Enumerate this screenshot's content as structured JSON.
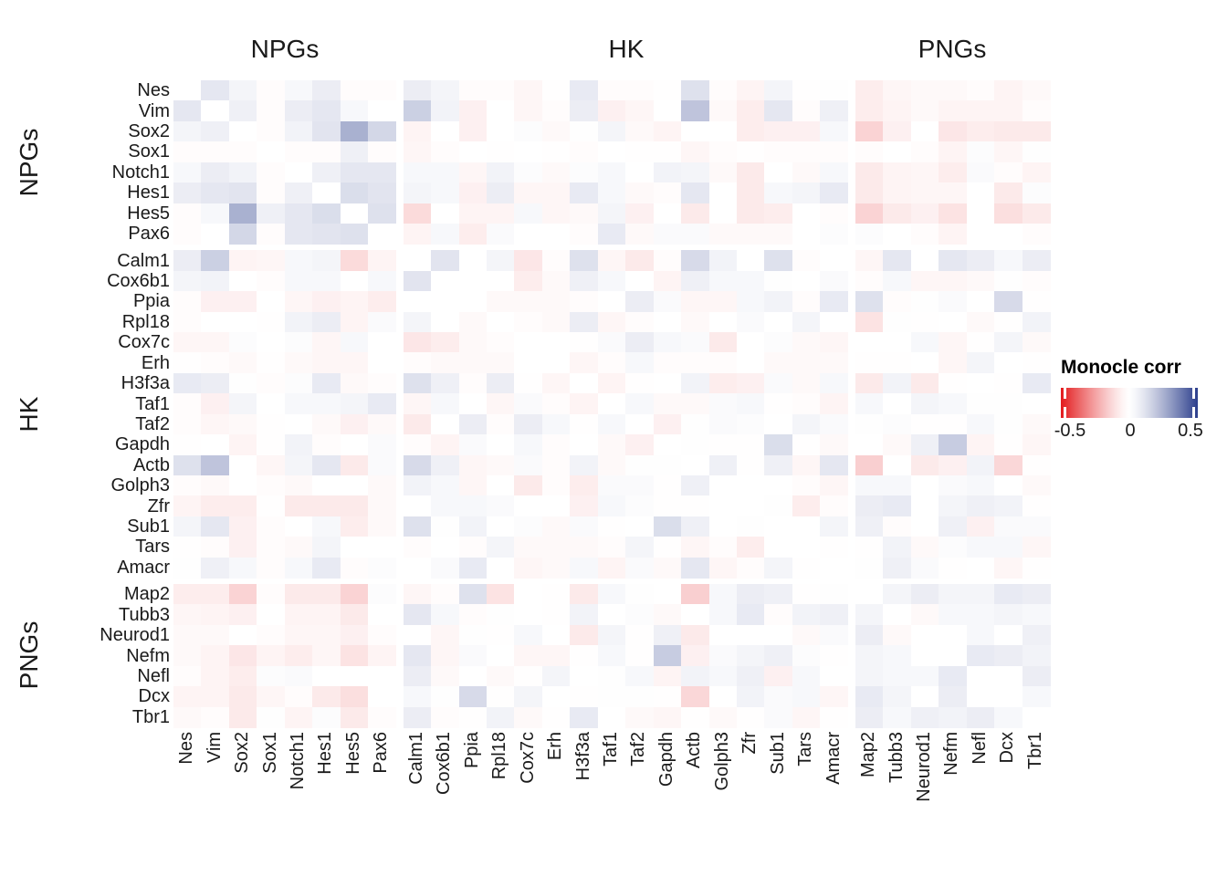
{
  "chart_data": {
    "type": "heatmap",
    "legend_title": "Monocle corr",
    "colorbar": {
      "min": -0.5,
      "mid": 0,
      "max": 0.5,
      "ticks": [
        "-0.5",
        "0",
        "0.5"
      ],
      "neg_color": "#E31A1C",
      "mid_color": "#FFFFFF",
      "pos_color": "#2C3E8C"
    },
    "groups": [
      {
        "label": "NPGs",
        "genes": [
          "Nes",
          "Vim",
          "Sox2",
          "Sox1",
          "Notch1",
          "Hes1",
          "Hes5",
          "Pax6"
        ]
      },
      {
        "label": "HK",
        "genes": [
          "Calm1",
          "Cox6b1",
          "Ppia",
          "Rpl18",
          "Cox7c",
          "Erh",
          "H3f3a",
          "Taf1",
          "Taf2",
          "Gapdh",
          "Actb",
          "Golph3",
          "Zfr",
          "Sub1",
          "Tars",
          "Amacr"
        ]
      },
      {
        "label": "PNGs",
        "genes": [
          "Map2",
          "Tubb3",
          "Neurod1",
          "Nefm",
          "Nefl",
          "Dcx",
          "Tbr1"
        ]
      }
    ],
    "x": [
      "Nes",
      "Vim",
      "Sox2",
      "Sox1",
      "Notch1",
      "Hes1",
      "Hes5",
      "Pax6",
      "Calm1",
      "Cox6b1",
      "Ppia",
      "Rpl18",
      "Cox7c",
      "Erh",
      "H3f3a",
      "Taf1",
      "Taf2",
      "Gapdh",
      "Actb",
      "Golph3",
      "Zfr",
      "Sub1",
      "Tars",
      "Amacr",
      "Map2",
      "Tubb3",
      "Neurod1",
      "Nefm",
      "Nefl",
      "Dcx",
      "Tbr1"
    ],
    "y": [
      "Nes",
      "Vim",
      "Sox2",
      "Sox1",
      "Notch1",
      "Hes1",
      "Hes5",
      "Pax6",
      "Calm1",
      "Cox6b1",
      "Ppia",
      "Rpl18",
      "Cox7c",
      "Erh",
      "H3f3a",
      "Taf1",
      "Taf2",
      "Gapdh",
      "Actb",
      "Golph3",
      "Zfr",
      "Sub1",
      "Tars",
      "Amacr",
      "Map2",
      "Tubb3",
      "Neurod1",
      "Nefm",
      "Nefl",
      "Dcx",
      "Tbr1"
    ],
    "matrix": [
      [
        0,
        0.1,
        0.05,
        -0.02,
        0.04,
        0.08,
        -0.02,
        -0.02,
        0.08,
        0.05,
        -0.02,
        -0.02,
        -0.04,
        -0.01,
        0.09,
        -0.02,
        -0.02,
        -0.01,
        0.12,
        -0.02,
        -0.05,
        0.05,
        -0.01,
        0.01,
        -0.07,
        -0.04,
        -0.03,
        -0.03,
        -0.02,
        -0.05,
        -0.03
      ],
      [
        0.1,
        0,
        0.07,
        -0.02,
        0.08,
        0.1,
        0.04,
        0,
        0.17,
        0.06,
        -0.06,
        0,
        -0.04,
        -0.02,
        0.08,
        -0.06,
        -0.04,
        0,
        0.2,
        -0.03,
        -0.07,
        0.1,
        -0.02,
        0.07,
        -0.07,
        -0.05,
        -0.03,
        -0.05,
        -0.05,
        -0.05,
        -0.02
      ],
      [
        0.05,
        0.07,
        0,
        -0.02,
        0.06,
        0.11,
        0.25,
        0.15,
        -0.05,
        0,
        -0.06,
        0,
        0.02,
        -0.03,
        0.01,
        0.05,
        -0.03,
        -0.05,
        0,
        0,
        -0.07,
        -0.06,
        -0.06,
        0.04,
        -0.14,
        -0.06,
        0,
        -0.09,
        -0.07,
        -0.08,
        -0.08
      ],
      [
        -0.02,
        -0.02,
        -0.02,
        0,
        -0.02,
        -0.02,
        0.07,
        -0.02,
        -0.04,
        -0.02,
        0,
        -0.01,
        0,
        -0.01,
        -0.02,
        0,
        -0.01,
        -0.01,
        -0.04,
        -0.02,
        -0.01,
        -0.02,
        -0.02,
        -0.02,
        -0.02,
        0,
        -0.02,
        -0.05,
        0.02,
        -0.04,
        0.01
      ],
      [
        0.04,
        0.08,
        0.06,
        -0.02,
        0,
        0.07,
        0.1,
        0.1,
        0.04,
        0.04,
        -0.04,
        0.06,
        0.02,
        -0.03,
        0.02,
        0.04,
        0,
        0.06,
        0.05,
        -0.03,
        -0.08,
        0,
        -0.03,
        0.04,
        -0.08,
        -0.05,
        -0.04,
        -0.07,
        0.03,
        -0.02,
        -0.05
      ],
      [
        0.08,
        0.1,
        0.11,
        -0.02,
        0.07,
        0,
        0.13,
        0.11,
        0.05,
        0.04,
        -0.06,
        0.08,
        -0.04,
        -0.04,
        0.09,
        0.04,
        -0.03,
        -0.02,
        0.1,
        0,
        -0.08,
        0.04,
        0.05,
        0.09,
        -0.08,
        -0.05,
        -0.04,
        -0.04,
        0,
        -0.08,
        0.02
      ],
      [
        -0.02,
        0.04,
        0.25,
        0.07,
        0.1,
        0.13,
        0,
        0.12,
        -0.12,
        0,
        -0.05,
        -0.05,
        0.04,
        -0.04,
        -0.03,
        0.05,
        -0.06,
        0,
        -0.08,
        0,
        -0.08,
        -0.07,
        0,
        -0.02,
        -0.14,
        -0.08,
        -0.06,
        -0.1,
        0,
        -0.11,
        -0.08
      ],
      [
        -0.02,
        0,
        0.15,
        -0.02,
        0.1,
        0.11,
        0.12,
        0,
        -0.05,
        0.04,
        -0.07,
        0.03,
        0,
        0,
        -0.02,
        0.09,
        -0.03,
        0.03,
        0.03,
        -0.03,
        -0.03,
        -0.03,
        0,
        0.02,
        0.02,
        0,
        -0.02,
        -0.05,
        0,
        0,
        -0.02
      ],
      [
        0.08,
        0.17,
        -0.05,
        -0.04,
        0.04,
        0.05,
        -0.12,
        -0.05,
        0,
        0.11,
        0,
        0.05,
        -0.09,
        -0.02,
        0.12,
        -0.04,
        -0.08,
        -0.02,
        0.14,
        0.06,
        0,
        0.12,
        -0.02,
        0,
        -0.04,
        0.1,
        0,
        0.1,
        0.08,
        0.04,
        0.08
      ],
      [
        0.05,
        0.06,
        0,
        -0.02,
        0.04,
        0.04,
        0,
        0.04,
        0.11,
        0,
        0,
        0,
        -0.07,
        -0.03,
        0.07,
        0.04,
        0,
        -0.05,
        0.07,
        0.04,
        0.04,
        0.01,
        0,
        0.03,
        -0.02,
        0.04,
        -0.04,
        -0.04,
        -0.03,
        0.01,
        -0.02
      ],
      [
        -0.02,
        -0.06,
        -0.06,
        0,
        -0.04,
        -0.06,
        -0.05,
        -0.07,
        0,
        0,
        0,
        -0.03,
        -0.03,
        -0.03,
        -0.02,
        0,
        0.08,
        0.03,
        -0.04,
        -0.04,
        0.04,
        0.06,
        -0.02,
        0.09,
        0.12,
        -0.02,
        0.01,
        0.03,
        0,
        0.14,
        -0.01
      ],
      [
        -0.02,
        0,
        0,
        -0.01,
        0.06,
        0.08,
        -0.05,
        0.03,
        0.05,
        0,
        -0.03,
        0,
        -0.02,
        -0.03,
        0.08,
        -0.04,
        -0.02,
        0,
        -0.03,
        0,
        0.03,
        0,
        0.05,
        0,
        -0.1,
        0.01,
        -0.01,
        0,
        -0.03,
        -0.01,
        0.06
      ],
      [
        -0.04,
        -0.04,
        0.02,
        0,
        0.02,
        -0.04,
        0.04,
        0,
        -0.09,
        -0.07,
        -0.03,
        -0.02,
        0,
        0,
        -0.01,
        0.03,
        0.08,
        0.04,
        0.03,
        -0.08,
        0,
        0.02,
        -0.03,
        -0.04,
        0,
        0,
        0.04,
        -0.04,
        -0.01,
        0.05,
        -0.03
      ],
      [
        -0.01,
        -0.02,
        -0.03,
        -0.01,
        -0.03,
        -0.04,
        -0.04,
        0,
        -0.02,
        -0.03,
        -0.03,
        -0.03,
        0,
        0,
        -0.04,
        -0.02,
        0.04,
        -0.02,
        -0.02,
        -0.02,
        0,
        -0.03,
        -0.03,
        -0.03,
        -0.01,
        -0.01,
        0,
        -0.04,
        0.05,
        0,
        -0.01
      ],
      [
        0.09,
        0.08,
        0.01,
        -0.02,
        0.02,
        0.09,
        -0.03,
        -0.02,
        0.12,
        0.07,
        -0.02,
        0.08,
        -0.01,
        -0.04,
        0,
        -0.05,
        -0.01,
        0,
        0.06,
        -0.07,
        -0.06,
        0.03,
        -0.03,
        0.04,
        -0.08,
        0.06,
        -0.08,
        -0.01,
        0,
        -0.01,
        0.09
      ],
      [
        -0.02,
        -0.06,
        0.05,
        0,
        0.04,
        0.04,
        0.05,
        0.09,
        -0.04,
        0.04,
        0,
        -0.04,
        0.03,
        -0.02,
        -0.05,
        0,
        0.04,
        -0.03,
        -0.03,
        0.03,
        0.04,
        -0.01,
        -0.02,
        -0.05,
        0.04,
        0,
        0.05,
        0.04,
        0.01,
        0.01,
        0
      ],
      [
        -0.02,
        -0.04,
        -0.03,
        -0.01,
        0,
        -0.03,
        -0.06,
        -0.03,
        -0.08,
        0,
        0.08,
        -0.02,
        0.08,
        0.04,
        -0.01,
        0.04,
        0,
        -0.06,
        0.01,
        0.03,
        0.02,
        0,
        0.05,
        0.03,
        0.01,
        0.02,
        -0.01,
        -0.01,
        0.04,
        0.01,
        -0.03
      ],
      [
        -0.01,
        0,
        -0.05,
        -0.01,
        0.06,
        -0.02,
        0,
        0.03,
        -0.02,
        -0.05,
        0.03,
        0,
        0.04,
        -0.02,
        0,
        -0.03,
        -0.06,
        0,
        0.01,
        -0.01,
        -0.01,
        0.13,
        -0.01,
        -0.03,
        0,
        -0.03,
        0.07,
        0.18,
        -0.05,
        -0.01,
        -0.04
      ],
      [
        0.12,
        0.2,
        0,
        -0.04,
        0.05,
        0.1,
        -0.08,
        0.03,
        0.14,
        0.07,
        -0.04,
        -0.03,
        0.03,
        -0.02,
        0.06,
        -0.03,
        0.01,
        0.01,
        0,
        0.07,
        -0.01,
        0.07,
        -0.04,
        0.1,
        -0.15,
        0,
        -0.08,
        -0.06,
        0.06,
        -0.13,
        -0.01
      ],
      [
        -0.02,
        -0.03,
        0,
        -0.02,
        -0.03,
        0,
        0,
        -0.03,
        0.06,
        0.04,
        -0.04,
        0,
        -0.08,
        -0.02,
        -0.07,
        0.03,
        0.03,
        -0.01,
        0.07,
        0,
        0,
        0,
        -0.02,
        -0.04,
        0.04,
        0.04,
        0,
        0.03,
        0.04,
        0,
        -0.03
      ],
      [
        -0.05,
        -0.07,
        -0.07,
        -0.01,
        -0.08,
        -0.08,
        -0.08,
        -0.03,
        0,
        0.04,
        0.04,
        0.03,
        0,
        0,
        -0.06,
        0.04,
        0.02,
        -0.01,
        -0.01,
        0,
        0,
        0.01,
        -0.07,
        -0.02,
        0.08,
        0.09,
        0,
        0.05,
        0.07,
        0.06,
        -0.01
      ],
      [
        0.05,
        0.1,
        -0.06,
        -0.02,
        0,
        0.04,
        -0.07,
        -0.03,
        0.12,
        0.01,
        0.06,
        0,
        0.02,
        -0.03,
        0.03,
        -0.01,
        0,
        0.13,
        0.07,
        0,
        0.01,
        0,
        0,
        0.05,
        0.07,
        -0.02,
        0,
        0.07,
        -0.06,
        0.03,
        0.03
      ],
      [
        -0.01,
        -0.02,
        -0.06,
        -0.02,
        -0.03,
        0.05,
        0,
        0,
        -0.02,
        0,
        -0.02,
        0.05,
        -0.03,
        -0.03,
        -0.03,
        -0.02,
        0.05,
        -0.01,
        -0.04,
        -0.02,
        -0.07,
        0,
        0,
        -0.01,
        -0.01,
        0.06,
        -0.03,
        0.02,
        0.04,
        0.04,
        -0.04
      ],
      [
        0.01,
        0.07,
        0.04,
        -0.02,
        0.04,
        0.09,
        -0.02,
        0.02,
        0,
        0.03,
        0.09,
        0,
        -0.04,
        -0.03,
        0.04,
        -0.05,
        0.03,
        -0.03,
        0.1,
        -0.04,
        -0.02,
        0.05,
        -0.01,
        0,
        0.01,
        0.07,
        0.03,
        -0.01,
        0,
        -0.04,
        -0.01
      ],
      [
        -0.07,
        -0.07,
        -0.14,
        -0.02,
        -0.08,
        -0.08,
        -0.14,
        0.02,
        -0.04,
        -0.02,
        0.12,
        -0.1,
        0,
        -0.01,
        -0.08,
        0.04,
        0.01,
        0,
        -0.15,
        0.04,
        0.08,
        0.07,
        -0.01,
        0.01,
        0,
        0.05,
        0.08,
        0.05,
        0.05,
        0.09,
        0.08
      ],
      [
        -0.04,
        -0.05,
        -0.06,
        0,
        -0.05,
        -0.05,
        -0.08,
        0,
        0.1,
        0.04,
        -0.02,
        0.01,
        0,
        -0.01,
        0.06,
        0,
        0.02,
        -0.03,
        0,
        0.04,
        0.09,
        -0.02,
        0.06,
        0.07,
        0.05,
        0,
        -0.03,
        0.04,
        0.04,
        0.05,
        0.04
      ],
      [
        -0.03,
        -0.03,
        0,
        -0.02,
        -0.04,
        -0.04,
        -0.06,
        -0.02,
        0,
        -0.04,
        0.01,
        -0.01,
        0.04,
        0,
        -0.08,
        0.05,
        -0.01,
        0.07,
        -0.08,
        0,
        0,
        0,
        -0.03,
        0.03,
        0.08,
        -0.03,
        0,
        0,
        0.04,
        0,
        0.07
      ],
      [
        -0.03,
        -0.05,
        -0.09,
        -0.05,
        -0.07,
        -0.04,
        -0.1,
        -0.05,
        0.1,
        -0.04,
        0.03,
        0,
        -0.04,
        -0.04,
        -0.01,
        0.04,
        -0.01,
        0.18,
        -0.06,
        0.03,
        0.05,
        0.07,
        0.02,
        -0.01,
        0.05,
        0.04,
        0,
        0,
        0.09,
        0.08,
        0.06
      ],
      [
        -0.02,
        -0.05,
        -0.07,
        0.02,
        0.03,
        0,
        0,
        0,
        0.08,
        -0.03,
        0,
        -0.03,
        -0.01,
        0.05,
        0,
        0.01,
        0.04,
        -0.05,
        0.06,
        0.04,
        0.07,
        -0.06,
        0.04,
        0,
        0.05,
        0.04,
        0.04,
        0.09,
        0,
        0,
        0.08
      ],
      [
        -0.05,
        -0.05,
        -0.08,
        -0.04,
        -0.02,
        -0.08,
        -0.11,
        0,
        0.04,
        0.01,
        0.14,
        -0.01,
        0.05,
        0,
        -0.01,
        0.01,
        0.01,
        -0.01,
        -0.13,
        0,
        0.06,
        0.03,
        0.04,
        -0.04,
        0.09,
        0.05,
        0,
        0.08,
        0,
        0,
        0.04
      ],
      [
        -0.03,
        -0.02,
        -0.08,
        0.01,
        -0.05,
        0.02,
        -0.08,
        -0.02,
        0.08,
        -0.02,
        -0.01,
        0.06,
        -0.03,
        -0.01,
        0.09,
        0,
        -0.03,
        -0.04,
        -0.01,
        -0.03,
        -0.01,
        0.03,
        -0.04,
        -0.01,
        0.08,
        0.04,
        0.07,
        0.06,
        0.08,
        0.04,
        0
      ]
    ]
  }
}
